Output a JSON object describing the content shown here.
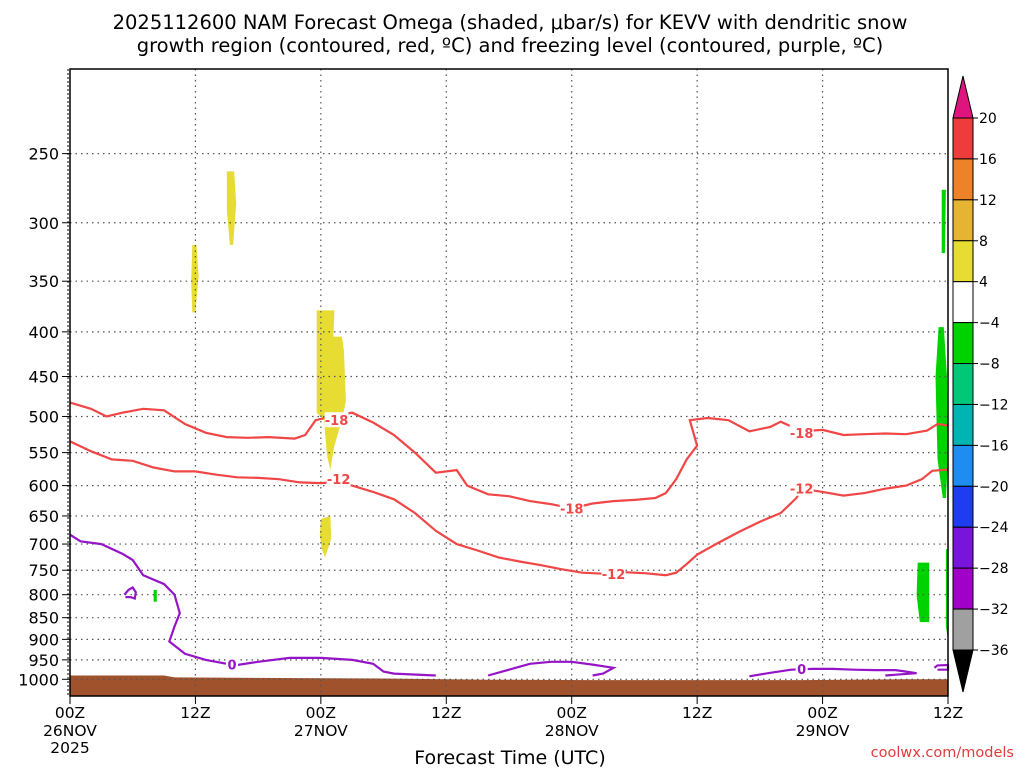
{
  "chart_data": {
    "type": "heatmap",
    "title_line1": "2025112600 NAM Forecast Omega (shaded, μbar/s) for KEVV with dendritic snow",
    "title_line2": "growth region (contoured, red, ºC) and freezing level (contoured, purple, ºC)",
    "xlabel": "Forecast Time (UTC)",
    "credit": "coolwx.com/models",
    "x_range_hours": [
      0,
      84
    ],
    "x_ticks": [
      {
        "hour": 0,
        "label": "00Z",
        "date": "26NOV",
        "year": "2025"
      },
      {
        "hour": 12,
        "label": "12Z",
        "date": "",
        "year": ""
      },
      {
        "hour": 24,
        "label": "00Z",
        "date": "27NOV",
        "year": ""
      },
      {
        "hour": 36,
        "label": "12Z",
        "date": "",
        "year": ""
      },
      {
        "hour": 48,
        "label": "00Z",
        "date": "28NOV",
        "year": ""
      },
      {
        "hour": 60,
        "label": "12Z",
        "date": "",
        "year": ""
      },
      {
        "hour": 72,
        "label": "00Z",
        "date": "29NOV",
        "year": ""
      },
      {
        "hour": 84,
        "label": "12Z",
        "date": "",
        "year": ""
      }
    ],
    "y_axis": "pressure (hPa), log scale",
    "y_range": [
      1045,
      200
    ],
    "y_ticks": [
      250,
      300,
      350,
      400,
      450,
      500,
      550,
      600,
      650,
      700,
      750,
      800,
      850,
      900,
      950,
      1000
    ],
    "colorbar": {
      "labels": [
        "20",
        "16",
        "12",
        "8",
        "4",
        "−4",
        "−8",
        "−12",
        "−16",
        "−20",
        "−24",
        "−28",
        "−32",
        "−36"
      ],
      "top_arrow_color": "#e0147f",
      "bottom_arrow_color": "#000000",
      "bins": [
        {
          "range": [
            16,
            20
          ],
          "color": "#ee3c3c"
        },
        {
          "range": [
            12,
            16
          ],
          "color": "#ee8228"
        },
        {
          "range": [
            8,
            12
          ],
          "color": "#e6b432"
        },
        {
          "range": [
            4,
            8
          ],
          "color": "#e6dc32"
        },
        {
          "range": [
            -4,
            4
          ],
          "color": "#ffffff"
        },
        {
          "range": [
            -8,
            -4
          ],
          "color": "#00d200"
        },
        {
          "range": [
            -12,
            -8
          ],
          "color": "#00c878"
        },
        {
          "range": [
            -16,
            -12
          ],
          "color": "#00b4b4"
        },
        {
          "range": [
            -20,
            -16
          ],
          "color": "#1e8cf0"
        },
        {
          "range": [
            -24,
            -20
          ],
          "color": "#1e3cf0"
        },
        {
          "range": [
            -28,
            -24
          ],
          "color": "#7814dc"
        },
        {
          "range": [
            -32,
            -28
          ],
          "color": "#a000c8"
        },
        {
          "range": [
            -36,
            -32
          ],
          "color": "#a0a0a0"
        }
      ]
    },
    "colors": {
      "dgz_contour": "#f04646",
      "freezing_contour": "#9614c8",
      "ground": "#a0522d",
      "grid": "#555555"
    },
    "shaded_regions": [
      {
        "omega": 5,
        "color": "#e6dc32",
        "pts": [
          [
            15,
            262
          ],
          [
            15.7,
            262
          ],
          [
            15.9,
            285
          ],
          [
            15.6,
            318
          ],
          [
            15.3,
            318
          ],
          [
            15.0,
            290
          ]
        ]
      },
      {
        "omega": 5,
        "color": "#e6dc32",
        "pts": [
          [
            11.7,
            318
          ],
          [
            12.1,
            318
          ],
          [
            12.3,
            345
          ],
          [
            12.0,
            380
          ],
          [
            11.7,
            380
          ],
          [
            11.6,
            350
          ]
        ]
      },
      {
        "omega": 6,
        "color": "#e6dc32",
        "pts": [
          [
            23.6,
            378
          ],
          [
            25.3,
            378
          ],
          [
            25.2,
            405
          ],
          [
            26.0,
            405
          ],
          [
            26.2,
            420
          ],
          [
            26.4,
            480
          ],
          [
            26.0,
            505
          ],
          [
            25.3,
            540
          ],
          [
            24.9,
            575
          ],
          [
            24.6,
            555
          ],
          [
            24.3,
            505
          ],
          [
            23.6,
            495
          ]
        ]
      },
      {
        "omega": 5,
        "color": "#e6dc32",
        "pts": [
          [
            24.0,
            655
          ],
          [
            24.9,
            650
          ],
          [
            25.0,
            690
          ],
          [
            24.4,
            725
          ],
          [
            24.1,
            710
          ],
          [
            23.9,
            685
          ]
        ]
      },
      {
        "omega": -5,
        "color": "#00d200",
        "pts": [
          [
            8.0,
            790
          ],
          [
            8.3,
            790
          ],
          [
            8.3,
            815
          ],
          [
            8.0,
            815
          ]
        ]
      },
      {
        "omega": -5,
        "color": "#00d200",
        "pts": [
          [
            83.4,
            275
          ],
          [
            83.8,
            275
          ],
          [
            83.7,
            325
          ],
          [
            83.4,
            325
          ]
        ]
      },
      {
        "omega": -6,
        "color": "#00d200",
        "pts": [
          [
            83.1,
            395
          ],
          [
            83.6,
            395
          ],
          [
            83.9,
            450
          ],
          [
            84,
            560
          ],
          [
            83.8,
            620
          ],
          [
            83.5,
            620
          ],
          [
            83.0,
            560
          ],
          [
            82.8,
            450
          ]
        ]
      },
      {
        "omega": -5,
        "color": "#00d200",
        "pts": [
          [
            81.1,
            735
          ],
          [
            82.2,
            735
          ],
          [
            82.2,
            860
          ],
          [
            81.3,
            860
          ],
          [
            81.0,
            800
          ]
        ]
      },
      {
        "omega": -5,
        "color": "#00d200",
        "pts": [
          [
            83.8,
            710
          ],
          [
            84,
            710
          ],
          [
            84,
            900
          ],
          [
            83.8,
            870
          ]
        ]
      }
    ],
    "dgz_contours": [
      {
        "label": "-18",
        "label_at": [
          25.5,
          505
        ],
        "label_rotation": 0,
        "pts": [
          [
            0,
            482
          ],
          [
            2,
            490
          ],
          [
            3.5,
            500
          ],
          [
            5,
            495
          ],
          [
            7,
            490
          ],
          [
            9,
            492
          ],
          [
            11,
            510
          ],
          [
            13,
            522
          ],
          [
            15,
            528
          ],
          [
            17,
            529
          ],
          [
            19,
            528
          ],
          [
            21.5,
            530
          ],
          [
            22.5,
            525
          ],
          [
            23.5,
            505
          ],
          [
            25,
            500
          ],
          [
            27,
            495
          ],
          [
            29,
            508
          ],
          [
            31,
            525
          ],
          [
            33,
            550
          ],
          [
            35,
            580
          ],
          [
            37,
            576
          ],
          [
            38,
            600
          ],
          [
            40,
            614
          ],
          [
            42,
            617
          ],
          [
            44,
            625
          ],
          [
            46,
            630
          ],
          [
            48,
            637
          ],
          [
            50,
            629
          ],
          [
            52,
            625
          ],
          [
            54,
            623
          ],
          [
            56,
            620
          ],
          [
            57,
            612
          ],
          [
            58,
            590
          ],
          [
            59,
            560
          ],
          [
            60,
            540
          ],
          [
            59.3,
            505
          ],
          [
            61,
            502
          ],
          [
            63,
            505
          ],
          [
            65,
            520
          ],
          [
            67,
            514
          ],
          [
            68,
            507
          ],
          [
            70,
            520
          ],
          [
            72,
            518
          ],
          [
            74,
            525
          ],
          [
            76,
            524
          ],
          [
            78,
            523
          ],
          [
            80,
            524
          ],
          [
            82,
            519
          ],
          [
            83,
            510
          ],
          [
            84,
            512
          ]
        ]
      },
      {
        "label": "-12",
        "label_at": [
          25.7,
          590
        ],
        "label_rotation": 0,
        "pts": [
          [
            0,
            534
          ],
          [
            2,
            548
          ],
          [
            4,
            560
          ],
          [
            6,
            562
          ],
          [
            8,
            572
          ],
          [
            10,
            578
          ],
          [
            12,
            578
          ],
          [
            14,
            583
          ],
          [
            16,
            587
          ],
          [
            18,
            588
          ],
          [
            20,
            590
          ],
          [
            22,
            595
          ],
          [
            24,
            596
          ],
          [
            25,
            595
          ],
          [
            27,
            600
          ],
          [
            29,
            610
          ],
          [
            31,
            622
          ],
          [
            33,
            645
          ],
          [
            35,
            676
          ],
          [
            37,
            700
          ],
          [
            39,
            712
          ],
          [
            41,
            725
          ],
          [
            43,
            733
          ],
          [
            45,
            740
          ],
          [
            47,
            748
          ],
          [
            49,
            755
          ],
          [
            51,
            757
          ],
          [
            53,
            754
          ],
          [
            55,
            756
          ],
          [
            57,
            760
          ],
          [
            58,
            755
          ],
          [
            59,
            738
          ],
          [
            60,
            720
          ],
          [
            62,
            698
          ],
          [
            64,
            678
          ],
          [
            66,
            660
          ],
          [
            68,
            645
          ],
          [
            69.5,
            620
          ],
          [
            70,
            605
          ],
          [
            72,
            610
          ],
          [
            74,
            616
          ],
          [
            76,
            612
          ],
          [
            78,
            605
          ],
          [
            80,
            600
          ],
          [
            81.5,
            590
          ],
          [
            82.5,
            577
          ],
          [
            84,
            575
          ]
        ]
      },
      {
        "label": "-12",
        "label_at": [
          52,
          758
        ],
        "label_rotation": 0,
        "pts": []
      },
      {
        "label": "-18",
        "label_at": [
          48,
          637
        ],
        "label_rotation": 0,
        "pts": []
      },
      {
        "label": "-12",
        "label_at": [
          70,
          605
        ],
        "label_rotation": 0,
        "pts": []
      },
      {
        "label": "-18",
        "label_at": [
          70,
          522
        ],
        "label_rotation": 0,
        "pts": []
      }
    ],
    "freezing_contours": [
      {
        "label": "0",
        "pts": [
          [
            0,
            683
          ],
          [
            1,
            695
          ],
          [
            3,
            700
          ],
          [
            5,
            718
          ],
          [
            6,
            730
          ],
          [
            7,
            760
          ],
          [
            9,
            778
          ],
          [
            10,
            800
          ],
          [
            10.5,
            840
          ],
          [
            10,
            870
          ],
          [
            9.5,
            905
          ],
          [
            11,
            935
          ],
          [
            13,
            950
          ],
          [
            15,
            960
          ],
          [
            16,
            963
          ],
          [
            18,
            955
          ],
          [
            21,
            945
          ],
          [
            24,
            945
          ],
          [
            27,
            950
          ],
          [
            29,
            960
          ],
          [
            30,
            980
          ],
          [
            31,
            985
          ],
          [
            35,
            990
          ]
        ]
      },
      {
        "label": "",
        "pts": [
          [
            5.2,
            800
          ],
          [
            5.6,
            790
          ],
          [
            6,
            785
          ],
          [
            6.3,
            795
          ],
          [
            6.2,
            808
          ],
          [
            5.8,
            805
          ],
          [
            5.3,
            805
          ]
        ]
      },
      {
        "label": "",
        "pts": [
          [
            40,
            990
          ],
          [
            42,
            975
          ],
          [
            44,
            960
          ],
          [
            46,
            955
          ],
          [
            48,
            955
          ],
          [
            50,
            962
          ],
          [
            52,
            970
          ],
          [
            51,
            985
          ],
          [
            50,
            990
          ]
        ]
      },
      {
        "label": "",
        "pts": [
          [
            65,
            992
          ],
          [
            67,
            983
          ],
          [
            69,
            975
          ],
          [
            71,
            973
          ],
          [
            73,
            973
          ],
          [
            75,
            975
          ],
          [
            77,
            976
          ],
          [
            79,
            976
          ],
          [
            80,
            980
          ],
          [
            81,
            984
          ],
          [
            79,
            988
          ],
          [
            78,
            990
          ]
        ]
      },
      {
        "label": "",
        "pts": [
          [
            82.7,
            970
          ],
          [
            83,
            964
          ],
          [
            84,
            963
          ],
          [
            84,
            975
          ],
          [
            83,
            975
          ]
        ]
      }
    ],
    "freezing_labels": [
      {
        "text": "0",
        "at": [
          15.5,
          962
        ]
      },
      {
        "text": "0",
        "at": [
          70,
          973
        ]
      }
    ],
    "ground_surface": [
      [
        0,
        990
      ],
      [
        9,
        990
      ],
      [
        10,
        995
      ],
      [
        30,
        998
      ],
      [
        40,
        1001
      ],
      [
        50,
        1002
      ],
      [
        60,
        1002
      ],
      [
        70,
        1002
      ],
      [
        80,
        1000
      ],
      [
        84,
        1000
      ]
    ]
  }
}
